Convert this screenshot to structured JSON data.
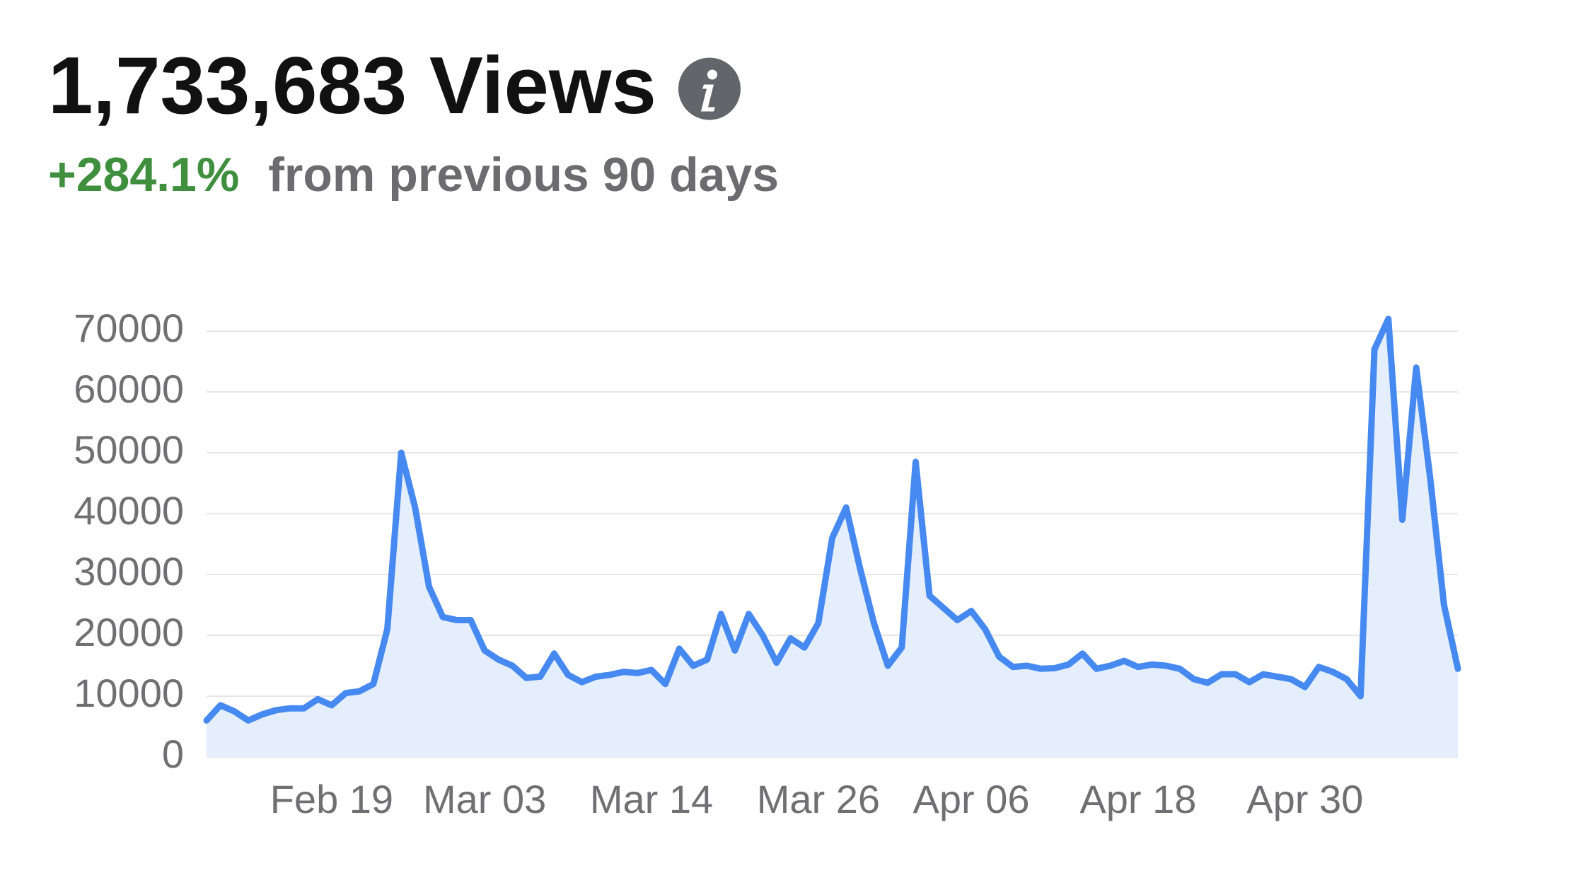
{
  "chart_data": {
    "type": "area-line",
    "title": "1,733,683 Views",
    "change": "+284.1%",
    "subtitle": "from previous 90 days",
    "color": "#4689f1",
    "area_color": "#e4eefc",
    "change_color": "#3f8f3f",
    "grid": true,
    "ylim": [
      0,
      70000
    ],
    "yticks": [
      0,
      10000,
      20000,
      30000,
      40000,
      50000,
      60000,
      70000
    ],
    "categories": [
      null,
      null,
      null,
      null,
      null,
      null,
      null,
      null,
      null,
      "Feb 19",
      null,
      null,
      null,
      null,
      null,
      null,
      null,
      null,
      null,
      null,
      "Mar 03",
      null,
      null,
      null,
      null,
      null,
      null,
      null,
      null,
      null,
      null,
      null,
      "Mar 14",
      null,
      null,
      null,
      null,
      null,
      null,
      null,
      null,
      null,
      null,
      null,
      "Mar 26",
      null,
      null,
      null,
      null,
      null,
      null,
      null,
      null,
      null,
      null,
      "Apr 06",
      null,
      null,
      null,
      null,
      null,
      null,
      null,
      null,
      null,
      null,
      null,
      "Apr 18",
      null,
      null,
      null,
      null,
      null,
      null,
      null,
      null,
      null,
      null,
      null,
      "Apr 30",
      null,
      null,
      null,
      null,
      null,
      null,
      null,
      null,
      null,
      null,
      null
    ],
    "values": [
      6000,
      8500,
      7500,
      6000,
      7000,
      7700,
      8000,
      8000,
      9500,
      8500,
      10500,
      10800,
      12000,
      21000,
      50000,
      41000,
      28000,
      23000,
      22500,
      22500,
      17500,
      16000,
      15000,
      13000,
      13200,
      17000,
      13500,
      12300,
      13200,
      13500,
      14000,
      13800,
      14300,
      12000,
      17800,
      15000,
      16000,
      23500,
      17500,
      23500,
      20000,
      15500,
      19500,
      18000,
      22000,
      36000,
      41000,
      31000,
      22000,
      15000,
      18000,
      48500,
      26500,
      24500,
      22500,
      24000,
      21000,
      16500,
      14800,
      15000,
      14500,
      14600,
      15200,
      17000,
      14500,
      15000,
      15800,
      14800,
      15200,
      15000,
      14500,
      12800,
      12200,
      13600,
      13600,
      12300,
      13600,
      13200,
      12800,
      11500,
      14800,
      14000,
      12800,
      10000,
      67000,
      72000,
      39000,
      64000,
      46000,
      25000,
      14500
    ]
  }
}
